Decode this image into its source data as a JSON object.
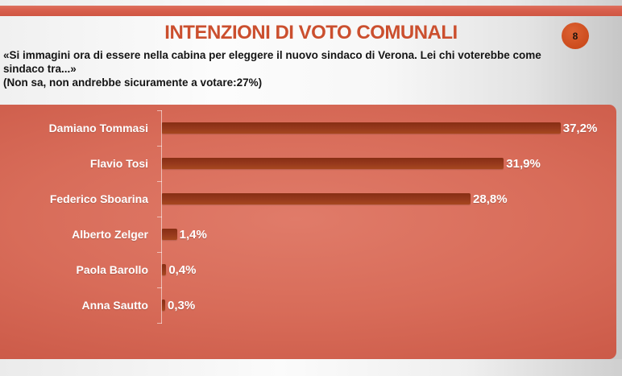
{
  "header": {
    "title": "INTENZIONI DI VOTO COMUNALI",
    "page_number": "8"
  },
  "subtitle": {
    "question": "«Si immagini ora di essere nella cabina per eleggere il nuovo sindaco di Verona. Lei chi voterebbe come sindaco tra...»",
    "note": "(Non sa, non andrebbe sicuramente a votare:27%)"
  },
  "colors": {
    "accent": "#cb4f2e",
    "band": "#d9614f",
    "badge": "#cc4c1d",
    "panel_dark": "#c25241",
    "panel_light": "#e07b69",
    "bar": "#96381c"
  },
  "chart_data": {
    "type": "bar",
    "orientation": "horizontal",
    "title": "INTENZIONI DI VOTO COMUNALI",
    "categories": [
      "Damiano Tommasi",
      "Flavio Tosi",
      "Federico Sboarina",
      "Alberto Zelger",
      "Paola Barollo",
      "Anna Sautto"
    ],
    "values": [
      37.2,
      31.9,
      28.8,
      1.4,
      0.4,
      0.3
    ],
    "value_labels": [
      "37,2%",
      "31,9%",
      "28,8%",
      "1,4%",
      "0,4%",
      "0,3%"
    ],
    "xlim": [
      0,
      42
    ],
    "grid": false,
    "legend": false,
    "bar_color": "#96381c",
    "background_color": "#d86c59"
  }
}
